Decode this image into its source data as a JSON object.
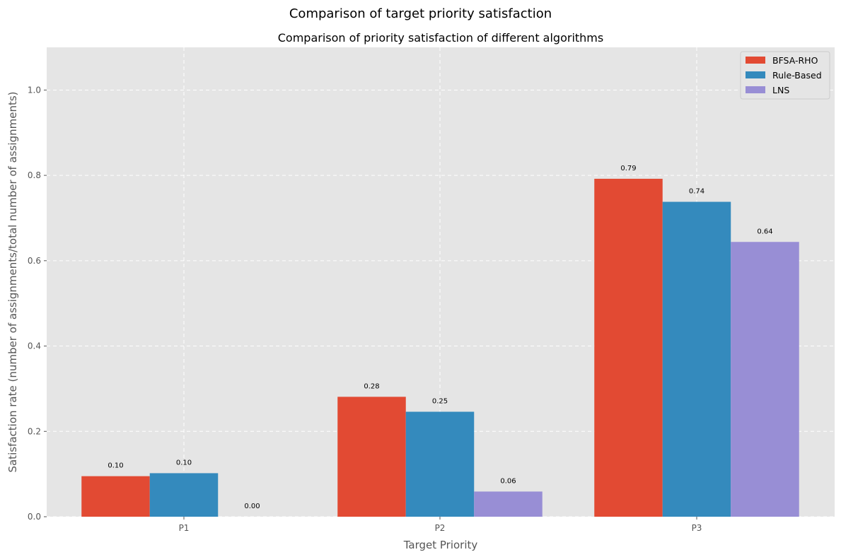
{
  "chart_data": {
    "type": "bar",
    "suptitle": "Comparison of target priority satisfaction",
    "title": "Comparison of priority satisfaction of different algorithms",
    "xlabel": "Target Priority",
    "ylabel": "Satisfaction rate (number of assignments/total number of assignments)",
    "categories": [
      "P1",
      "P2",
      "P3"
    ],
    "ylim": [
      0,
      1.1
    ],
    "yticks": [
      0.0,
      0.2,
      0.4,
      0.6,
      0.8,
      1.0
    ],
    "ytick_labels": [
      "0.0",
      "0.2",
      "0.4",
      "0.6",
      "0.8",
      "1.0"
    ],
    "grid": true,
    "legend_position": "top-right",
    "series": [
      {
        "name": "BFSA-RHO",
        "color": "#E24A33",
        "values": [
          0.095,
          0.281,
          0.792
        ],
        "labels": [
          "0.10",
          "0.28",
          "0.79"
        ]
      },
      {
        "name": "Rule-Based",
        "color": "#348ABD",
        "values": [
          0.102,
          0.246,
          0.738
        ],
        "labels": [
          "0.10",
          "0.25",
          "0.74"
        ]
      },
      {
        "name": "LNS",
        "color": "#988ED5",
        "values": [
          0.0,
          0.059,
          0.644
        ],
        "labels": [
          "0.00",
          "0.06",
          "0.64"
        ]
      }
    ]
  }
}
